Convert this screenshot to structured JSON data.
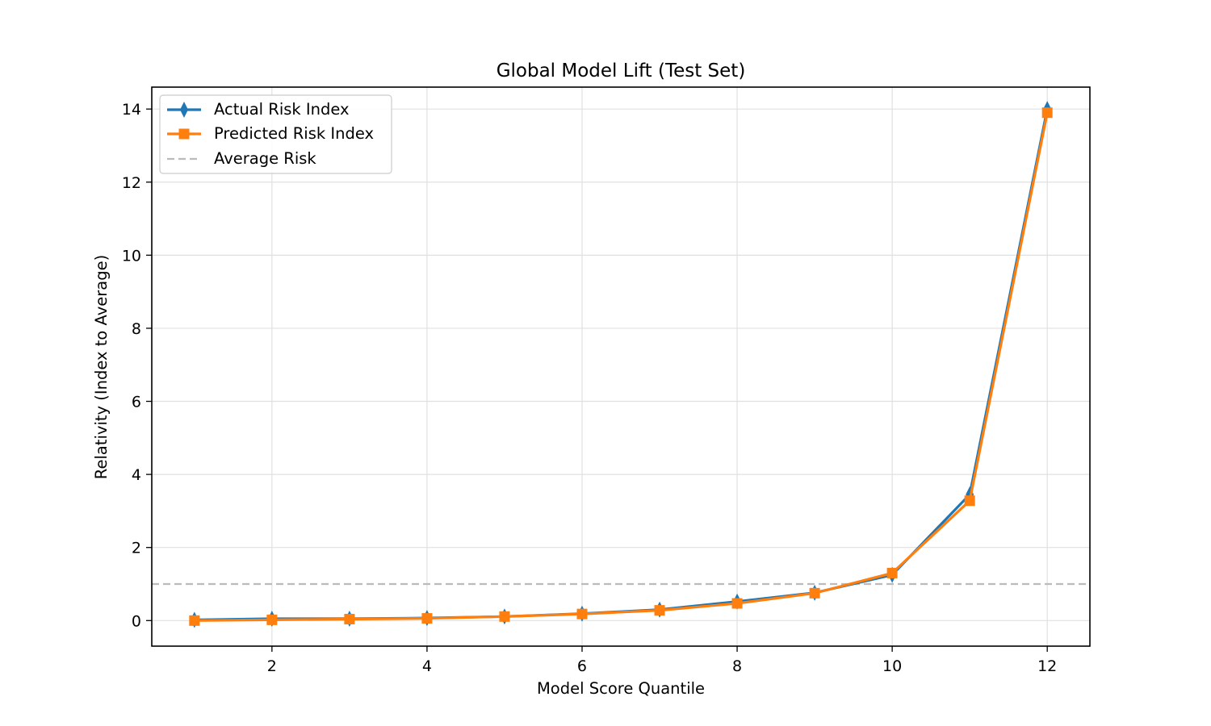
{
  "chart_data": {
    "type": "line",
    "title": "Global Model Lift (Test Set)",
    "xlabel": "Model Score Quantile",
    "ylabel": "Relativity (Index to Average)",
    "xlim": [
      0.45,
      12.55
    ],
    "ylim": [
      -0.7,
      14.6
    ],
    "xticks": [
      2,
      4,
      6,
      8,
      10,
      12
    ],
    "yticks": [
      0,
      2,
      4,
      6,
      8,
      10,
      12,
      14
    ],
    "grid": true,
    "legend_position": "top-left",
    "x": [
      1,
      2,
      3,
      4,
      5,
      6,
      7,
      8,
      9,
      10,
      11,
      12
    ],
    "series": [
      {
        "name": "Actual Risk Index",
        "color": "#1f77b4",
        "marker": "thin-diamond",
        "values": [
          0.02,
          0.05,
          0.05,
          0.07,
          0.11,
          0.19,
          0.3,
          0.52,
          0.76,
          1.25,
          3.45,
          14.0
        ]
      },
      {
        "name": "Predicted Risk Index",
        "color": "#ff7f0e",
        "marker": "square",
        "values": [
          0.0,
          0.02,
          0.04,
          0.06,
          0.11,
          0.18,
          0.28,
          0.47,
          0.75,
          1.3,
          3.28,
          13.9
        ]
      }
    ],
    "reference_line": {
      "name": "Average Risk",
      "y": 1.0,
      "color": "#bbbbbb",
      "style": "dashed"
    }
  }
}
